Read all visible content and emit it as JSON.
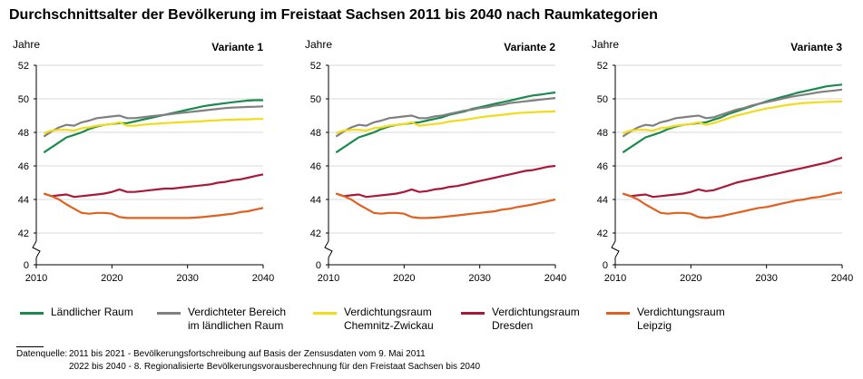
{
  "title": "Durchschnittsalter der Bevölkerung im Freistaat Sachsen 2011 bis 2040 nach Raumkategorien",
  "legend": [
    {
      "key": "laendlich",
      "lines": [
        "Ländlicher Raum"
      ],
      "color": "#1a8a4e"
    },
    {
      "key": "verdichtet",
      "lines": [
        "Verdichteter Bereich",
        "im ländlichen Raum"
      ],
      "color": "#808080"
    },
    {
      "key": "chemnitz",
      "lines": [
        "Verdichtungsraum",
        "Chemnitz-Zwickau"
      ],
      "color": "#f2dc1a"
    },
    {
      "key": "dresden",
      "lines": [
        "Verdichtungsraum",
        "Dresden"
      ],
      "color": "#a8193a"
    },
    {
      "key": "leipzig",
      "lines": [
        "Verdichtungsraum",
        "Leipzig"
      ],
      "color": "#e06020"
    }
  ],
  "source": {
    "label": "Datenquelle:",
    "line1": "2011 bis 2021 - Bevölkerungsfortschreibung auf Basis der Zensusdaten vom 9. Mai 2011",
    "line2": "2022 bis 2040 - 8. Regionalisierte Bevölkerungsvorausberechnung für den Freistaat Sachsen bis 2040"
  },
  "chart_data": [
    {
      "type": "line",
      "title": "Variante 1",
      "ylabel": "Jahre",
      "xlabel": "",
      "x": [
        2011,
        2012,
        2013,
        2014,
        2015,
        2016,
        2017,
        2018,
        2019,
        2020,
        2021,
        2022,
        2023,
        2024,
        2025,
        2026,
        2027,
        2028,
        2029,
        2030,
        2031,
        2032,
        2033,
        2034,
        2035,
        2036,
        2037,
        2038,
        2039,
        2040
      ],
      "x_ticks": [
        2010,
        2020,
        2030,
        2040
      ],
      "y_ticks": [
        0,
        42,
        44,
        46,
        48,
        50,
        52
      ],
      "ylim": [
        42,
        52
      ],
      "axis_break": true,
      "series": [
        {
          "name": "Ländlicher Raum",
          "values": [
            46.8,
            47.1,
            47.4,
            47.7,
            47.85,
            48.0,
            48.2,
            48.35,
            48.45,
            48.5,
            48.55,
            48.55,
            48.65,
            48.75,
            48.85,
            48.95,
            49.05,
            49.15,
            49.25,
            49.35,
            49.45,
            49.55,
            49.62,
            49.68,
            49.74,
            49.8,
            49.85,
            49.9,
            49.92,
            49.92
          ]
        },
        {
          "name": "Verdichteter Bereich im ländlichen Raum",
          "values": [
            47.75,
            48.05,
            48.3,
            48.45,
            48.4,
            48.6,
            48.7,
            48.85,
            48.9,
            48.95,
            49.0,
            48.85,
            48.85,
            48.9,
            48.95,
            49.0,
            49.05,
            49.1,
            49.15,
            49.2,
            49.25,
            49.3,
            49.35,
            49.4,
            49.45,
            49.48,
            49.5,
            49.52,
            49.53,
            49.55
          ]
        },
        {
          "name": "Verdichtungsraum Chemnitz-Zwickau",
          "values": [
            47.95,
            48.1,
            48.15,
            48.15,
            48.1,
            48.25,
            48.3,
            48.4,
            48.45,
            48.5,
            48.6,
            48.4,
            48.4,
            48.45,
            48.5,
            48.52,
            48.55,
            48.58,
            48.6,
            48.62,
            48.65,
            48.67,
            48.7,
            48.72,
            48.75,
            48.75,
            48.78,
            48.78,
            48.8,
            48.8
          ]
        },
        {
          "name": "Verdichtungsraum Dresden",
          "values": [
            44.35,
            44.2,
            44.25,
            44.3,
            44.15,
            44.2,
            44.25,
            44.3,
            44.35,
            44.45,
            44.6,
            44.45,
            44.45,
            44.5,
            44.55,
            44.6,
            44.65,
            44.65,
            44.7,
            44.75,
            44.8,
            44.85,
            44.9,
            45.0,
            45.05,
            45.15,
            45.2,
            45.3,
            45.4,
            45.5
          ]
        },
        {
          "name": "Verdichtungsraum Leipzig",
          "values": [
            44.35,
            44.2,
            44.0,
            43.7,
            43.45,
            43.2,
            43.15,
            43.2,
            43.2,
            43.15,
            42.95,
            42.9,
            42.9,
            42.9,
            42.9,
            42.9,
            42.9,
            42.9,
            42.9,
            42.9,
            42.92,
            42.95,
            43.0,
            43.05,
            43.1,
            43.15,
            43.25,
            43.3,
            43.4,
            43.5
          ]
        }
      ]
    },
    {
      "type": "line",
      "title": "Variante 2",
      "ylabel": "Jahre",
      "xlabel": "",
      "x": [
        2011,
        2012,
        2013,
        2014,
        2015,
        2016,
        2017,
        2018,
        2019,
        2020,
        2021,
        2022,
        2023,
        2024,
        2025,
        2026,
        2027,
        2028,
        2029,
        2030,
        2031,
        2032,
        2033,
        2034,
        2035,
        2036,
        2037,
        2038,
        2039,
        2040
      ],
      "x_ticks": [
        2010,
        2020,
        2030,
        2040
      ],
      "y_ticks": [
        0,
        42,
        44,
        46,
        48,
        50,
        52
      ],
      "ylim": [
        42,
        52
      ],
      "axis_break": true,
      "series": [
        {
          "name": "Ländlicher Raum",
          "values": [
            46.8,
            47.1,
            47.4,
            47.7,
            47.85,
            48.0,
            48.2,
            48.35,
            48.45,
            48.5,
            48.55,
            48.6,
            48.7,
            48.8,
            48.9,
            49.05,
            49.15,
            49.25,
            49.4,
            49.5,
            49.6,
            49.7,
            49.8,
            49.9,
            50.0,
            50.1,
            50.2,
            50.25,
            50.32,
            50.38
          ]
        },
        {
          "name": "Verdichteter Bereich im ländlichen Raum",
          "values": [
            47.75,
            48.05,
            48.3,
            48.45,
            48.4,
            48.6,
            48.7,
            48.85,
            48.9,
            48.95,
            49.0,
            48.85,
            48.85,
            48.95,
            49.0,
            49.1,
            49.2,
            49.3,
            49.35,
            49.45,
            49.5,
            49.6,
            49.65,
            49.75,
            49.8,
            49.85,
            49.9,
            49.95,
            50.0,
            50.05
          ]
        },
        {
          "name": "Verdichtungsraum Chemnitz-Zwickau",
          "values": [
            47.95,
            48.1,
            48.15,
            48.15,
            48.1,
            48.25,
            48.3,
            48.4,
            48.45,
            48.5,
            48.6,
            48.4,
            48.45,
            48.5,
            48.55,
            48.65,
            48.7,
            48.75,
            48.82,
            48.9,
            48.95,
            49.0,
            49.05,
            49.1,
            49.15,
            49.18,
            49.2,
            49.22,
            49.24,
            49.25
          ]
        },
        {
          "name": "Verdichtungsraum Dresden",
          "values": [
            44.35,
            44.2,
            44.25,
            44.3,
            44.15,
            44.2,
            44.25,
            44.3,
            44.35,
            44.45,
            44.6,
            44.45,
            44.5,
            44.6,
            44.65,
            44.75,
            44.8,
            44.9,
            45.0,
            45.1,
            45.2,
            45.3,
            45.4,
            45.5,
            45.6,
            45.7,
            45.75,
            45.85,
            45.95,
            46.0
          ]
        },
        {
          "name": "Verdichtungsraum Leipzig",
          "values": [
            44.35,
            44.2,
            44.0,
            43.7,
            43.45,
            43.2,
            43.15,
            43.2,
            43.2,
            43.15,
            42.95,
            42.9,
            42.9,
            42.92,
            42.95,
            43.0,
            43.05,
            43.1,
            43.15,
            43.2,
            43.25,
            43.3,
            43.4,
            43.45,
            43.55,
            43.62,
            43.7,
            43.8,
            43.9,
            44.0
          ]
        }
      ]
    },
    {
      "type": "line",
      "title": "Variante 3",
      "ylabel": "Jahre",
      "xlabel": "",
      "x": [
        2011,
        2012,
        2013,
        2014,
        2015,
        2016,
        2017,
        2018,
        2019,
        2020,
        2021,
        2022,
        2023,
        2024,
        2025,
        2026,
        2027,
        2028,
        2029,
        2030,
        2031,
        2032,
        2033,
        2034,
        2035,
        2036,
        2037,
        2038,
        2039,
        2040
      ],
      "x_ticks": [
        2010,
        2020,
        2030,
        2040
      ],
      "y_ticks": [
        0,
        42,
        44,
        46,
        48,
        50,
        52
      ],
      "ylim": [
        42,
        52
      ],
      "axis_break": true,
      "series": [
        {
          "name": "Ländlicher Raum",
          "values": [
            46.8,
            47.1,
            47.4,
            47.7,
            47.85,
            48.0,
            48.2,
            48.35,
            48.45,
            48.5,
            48.55,
            48.6,
            48.75,
            48.9,
            49.1,
            49.25,
            49.4,
            49.55,
            49.7,
            49.85,
            49.98,
            50.1,
            50.22,
            50.35,
            50.45,
            50.55,
            50.65,
            50.75,
            50.8,
            50.85
          ]
        },
        {
          "name": "Verdichteter Bereich im ländlichen Raum",
          "values": [
            47.75,
            48.05,
            48.3,
            48.45,
            48.4,
            48.6,
            48.7,
            48.85,
            48.9,
            48.95,
            49.0,
            48.85,
            48.9,
            49.05,
            49.2,
            49.35,
            49.45,
            49.6,
            49.7,
            49.8,
            49.9,
            50.0,
            50.1,
            50.18,
            50.25,
            50.32,
            50.4,
            50.45,
            50.5,
            50.55
          ]
        },
        {
          "name": "Verdichtungsraum Chemnitz-Zwickau",
          "values": [
            47.95,
            48.1,
            48.15,
            48.15,
            48.1,
            48.25,
            48.3,
            48.4,
            48.45,
            48.5,
            48.6,
            48.45,
            48.55,
            48.7,
            48.85,
            49.0,
            49.1,
            49.22,
            49.32,
            49.42,
            49.5,
            49.58,
            49.65,
            49.7,
            49.75,
            49.78,
            49.8,
            49.82,
            49.84,
            49.85
          ]
        },
        {
          "name": "Verdichtungsraum Dresden",
          "values": [
            44.35,
            44.2,
            44.25,
            44.3,
            44.15,
            44.2,
            44.25,
            44.3,
            44.35,
            44.45,
            44.6,
            44.5,
            44.55,
            44.7,
            44.85,
            45.0,
            45.1,
            45.2,
            45.3,
            45.4,
            45.5,
            45.6,
            45.7,
            45.8,
            45.9,
            46.0,
            46.1,
            46.2,
            46.35,
            46.5
          ]
        },
        {
          "name": "Verdichtungsraum Leipzig",
          "values": [
            44.35,
            44.2,
            44.0,
            43.7,
            43.45,
            43.2,
            43.15,
            43.2,
            43.2,
            43.15,
            42.95,
            42.9,
            42.95,
            43.0,
            43.1,
            43.2,
            43.3,
            43.4,
            43.5,
            43.55,
            43.65,
            43.75,
            43.85,
            43.95,
            44.0,
            44.1,
            44.15,
            44.25,
            44.35,
            44.42
          ]
        }
      ]
    }
  ]
}
